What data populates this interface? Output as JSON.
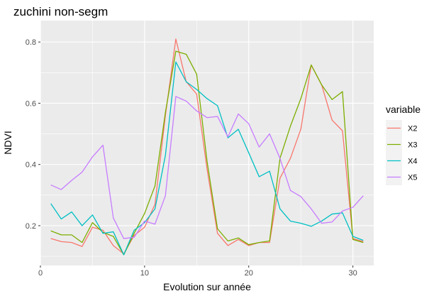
{
  "chart_data": {
    "type": "line",
    "title": "zuchini non-segm",
    "xlabel": "Evolution sur année",
    "ylabel": "NDVI",
    "xlim": [
      0,
      32
    ],
    "ylim": [
      0.07,
      0.87
    ],
    "x_ticks": [
      0,
      10,
      20,
      30
    ],
    "y_ticks": [
      0.2,
      0.4,
      0.6,
      0.8
    ],
    "y_tick_labels": [
      "0.2",
      "0.4",
      "0.6",
      "0.8"
    ],
    "grid": true,
    "legend_position": "right",
    "legend_title": "variable",
    "x": [
      1,
      2,
      3,
      4,
      5,
      6,
      7,
      8,
      9,
      10,
      11,
      12,
      13,
      14,
      15,
      16,
      17,
      18,
      19,
      20,
      21,
      22,
      23,
      24,
      25,
      26,
      27,
      28,
      29,
      30,
      31
    ],
    "series": [
      {
        "name": "X2",
        "color": "#F8766D",
        "values": [
          0.158,
          0.148,
          0.145,
          0.132,
          0.195,
          0.185,
          0.135,
          0.108,
          0.168,
          0.195,
          0.27,
          0.56,
          0.81,
          0.67,
          0.63,
          0.385,
          0.175,
          0.135,
          0.155,
          0.135,
          0.145,
          0.145,
          0.355,
          0.42,
          0.515,
          0.725,
          0.66,
          0.545,
          0.51,
          0.158,
          0.148
        ]
      },
      {
        "name": "X3",
        "color": "#7CAE00",
        "values": [
          0.183,
          0.17,
          0.17,
          0.145,
          0.21,
          0.178,
          0.165,
          0.105,
          0.175,
          0.24,
          0.33,
          0.57,
          0.77,
          0.76,
          0.695,
          0.41,
          0.19,
          0.15,
          0.16,
          0.138,
          0.145,
          0.15,
          0.42,
          0.525,
          0.615,
          0.725,
          0.66,
          0.612,
          0.638,
          0.155,
          0.145
        ]
      },
      {
        "name": "X4",
        "color": "#00BFC4",
        "values": [
          0.272,
          0.222,
          0.245,
          0.2,
          0.235,
          0.175,
          0.18,
          0.105,
          0.185,
          0.21,
          0.255,
          0.43,
          0.735,
          0.67,
          0.645,
          0.615,
          0.592,
          0.487,
          0.515,
          0.438,
          0.36,
          0.378,
          0.255,
          0.215,
          0.208,
          0.198,
          0.215,
          0.238,
          0.242,
          0.165,
          0.152
        ]
      },
      {
        "name": "X5",
        "color": "#C77CFF",
        "values": [
          0.333,
          0.318,
          0.348,
          0.375,
          0.425,
          0.463,
          0.225,
          0.158,
          0.162,
          0.215,
          0.205,
          0.298,
          0.622,
          0.607,
          0.575,
          0.553,
          0.557,
          0.49,
          0.565,
          0.533,
          0.457,
          0.5,
          0.42,
          0.315,
          0.295,
          0.255,
          0.208,
          0.212,
          0.248,
          0.26,
          0.298
        ]
      }
    ]
  }
}
